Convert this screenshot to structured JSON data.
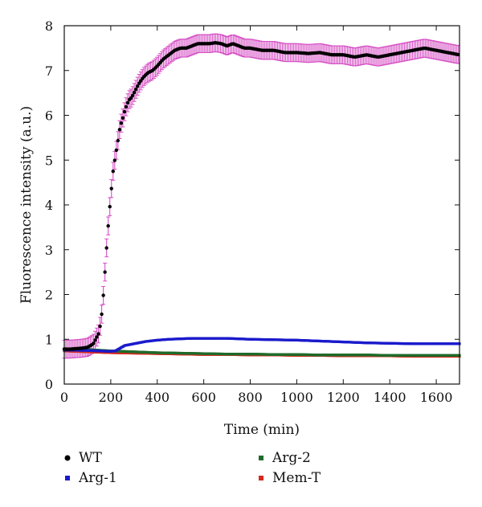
{
  "chart_data": {
    "type": "scatter",
    "xlabel": "Time (min)",
    "ylabel": "Fluorescence intensity (a.u.)",
    "xlim": [
      0,
      1700
    ],
    "ylim": [
      0,
      8
    ],
    "xticks": [
      0,
      200,
      400,
      600,
      800,
      1000,
      1200,
      1400,
      1600
    ],
    "yticks": [
      0,
      1,
      2,
      3,
      4,
      5,
      6,
      7,
      8
    ],
    "grid": false,
    "legend_position": "bottom",
    "series": [
      {
        "name": "WT",
        "color": "#000000",
        "marker": "circle",
        "error_bar_color": "#d64fc4",
        "error": 0.2,
        "x": [
          0,
          25,
          50,
          75,
          100,
          125,
          150,
          160,
          170,
          180,
          190,
          200,
          210,
          220,
          230,
          240,
          250,
          260,
          270,
          280,
          290,
          300,
          320,
          340,
          360,
          380,
          400,
          425,
          450,
          475,
          500,
          525,
          550,
          575,
          600,
          625,
          650,
          675,
          700,
          725,
          750,
          775,
          800,
          850,
          900,
          950,
          1000,
          1050,
          1100,
          1150,
          1200,
          1250,
          1300,
          1350,
          1400,
          1450,
          1500,
          1550,
          1600,
          1650,
          1700
        ],
        "y": [
          0.78,
          0.78,
          0.79,
          0.8,
          0.82,
          0.9,
          1.15,
          1.5,
          2.1,
          2.9,
          3.6,
          4.2,
          4.75,
          5.1,
          5.4,
          5.75,
          5.9,
          6.1,
          6.25,
          6.35,
          6.4,
          6.5,
          6.7,
          6.85,
          6.95,
          7.0,
          7.1,
          7.25,
          7.35,
          7.45,
          7.5,
          7.5,
          7.55,
          7.6,
          7.6,
          7.6,
          7.62,
          7.6,
          7.55,
          7.6,
          7.55,
          7.5,
          7.5,
          7.45,
          7.45,
          7.4,
          7.4,
          7.38,
          7.4,
          7.35,
          7.35,
          7.3,
          7.35,
          7.3,
          7.35,
          7.4,
          7.45,
          7.5,
          7.45,
          7.4,
          7.35
        ]
      },
      {
        "name": "Arg-1",
        "color": "#1a1acc",
        "marker": "square",
        "x": [
          0,
          100,
          200,
          220,
          240,
          260,
          300,
          350,
          400,
          450,
          500,
          550,
          600,
          650,
          700,
          750,
          800,
          900,
          1000,
          1100,
          1200,
          1300,
          1400,
          1500,
          1600,
          1700
        ],
        "y": [
          0.76,
          0.75,
          0.73,
          0.74,
          0.8,
          0.86,
          0.9,
          0.95,
          0.98,
          1.0,
          1.01,
          1.02,
          1.02,
          1.02,
          1.02,
          1.01,
          1.0,
          0.99,
          0.98,
          0.96,
          0.94,
          0.92,
          0.91,
          0.9,
          0.9,
          0.9
        ]
      },
      {
        "name": "Arg-2",
        "color": "#1f6b2a",
        "marker": "square",
        "x": [
          0,
          100,
          200,
          300,
          400,
          500,
          600,
          700,
          800,
          900,
          1000,
          1100,
          1200,
          1300,
          1400,
          1500,
          1600,
          1700
        ],
        "y": [
          0.79,
          0.77,
          0.74,
          0.72,
          0.7,
          0.69,
          0.68,
          0.67,
          0.67,
          0.66,
          0.66,
          0.65,
          0.65,
          0.65,
          0.64,
          0.64,
          0.64,
          0.64
        ]
      },
      {
        "name": "Mem-T",
        "color": "#d42a1e",
        "marker": "square",
        "x": [
          0,
          100,
          200,
          300,
          400,
          500,
          600,
          700,
          800,
          900,
          1000,
          1100,
          1200,
          1300,
          1400,
          1500,
          1600,
          1700
        ],
        "y": [
          0.74,
          0.72,
          0.7,
          0.69,
          0.68,
          0.67,
          0.66,
          0.66,
          0.65,
          0.65,
          0.64,
          0.64,
          0.63,
          0.63,
          0.63,
          0.62,
          0.62,
          0.62
        ]
      }
    ]
  }
}
